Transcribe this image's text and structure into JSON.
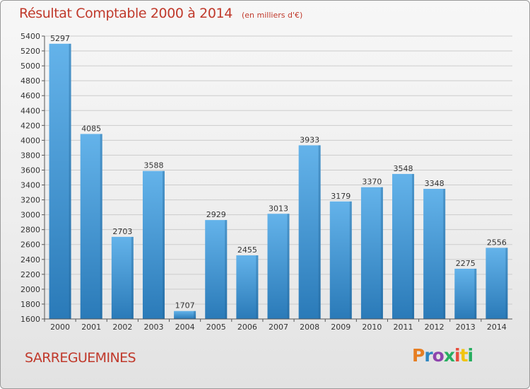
{
  "title": "Résultat Comptable 2000 à 2014",
  "subtitle": "(en milliers d'€)",
  "commune": "SARREGUEMINES",
  "brand": {
    "name": "Proxiti",
    "letters": [
      "P",
      "r",
      "o",
      "x",
      "i",
      "t",
      "i"
    ],
    "letter_colors": [
      "#e67e22",
      "#2e86c1",
      "#8e44ad",
      "#27ae60",
      "#e74c3c",
      "#f1c40f",
      "#27ae60"
    ]
  },
  "colors": {
    "title": "#c0392b",
    "bar_top": "#64b3ea",
    "bar_bottom": "#2a7ab8",
    "bar_side": "#1f5f90",
    "grid": "#cccccc",
    "axis": "#555555"
  },
  "chart_data": {
    "type": "bar",
    "title": "Résultat Comptable 2000 à 2014",
    "subtitle": "(en milliers d'€)",
    "xlabel": "",
    "ylabel": "",
    "categories": [
      "2000",
      "2001",
      "2002",
      "2003",
      "2004",
      "2005",
      "2006",
      "2007",
      "2008",
      "2009",
      "2010",
      "2011",
      "2012",
      "2013",
      "2014"
    ],
    "values": [
      5297,
      4085,
      2703,
      3588,
      1707,
      2929,
      2455,
      3013,
      3933,
      3179,
      3370,
      3548,
      3348,
      2275,
      2556
    ],
    "data_labels": [
      "5297",
      "4085",
      "2703",
      "3588",
      "1707",
      "2929",
      "2455",
      "3013",
      "3933",
      "3179",
      "3370",
      "3548",
      "3348",
      "2275",
      "2556"
    ],
    "ylim": [
      1600,
      5400
    ],
    "yticks": [
      1600,
      1800,
      2000,
      2200,
      2400,
      2600,
      2800,
      3000,
      3200,
      3400,
      3600,
      3800,
      4000,
      4200,
      4400,
      4600,
      4800,
      5000,
      5200,
      5400
    ],
    "grid": true,
    "legend": "none"
  }
}
